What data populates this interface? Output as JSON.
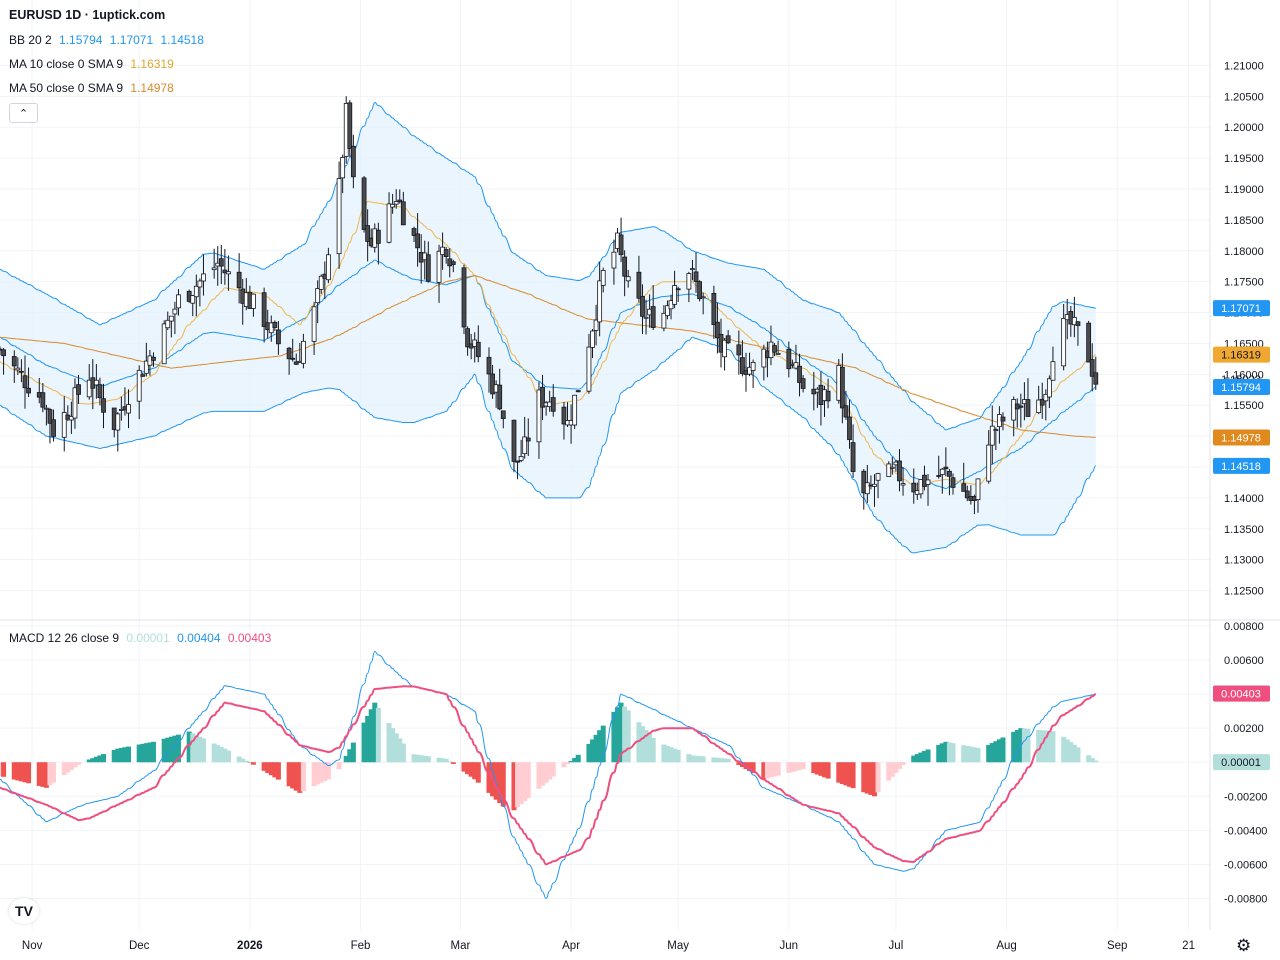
{
  "header": {
    "title": "EURUSD 1D · 1uptick.com"
  },
  "legend": {
    "bb": {
      "label": "BB 20 2",
      "values": [
        "1.15794",
        "1.17071",
        "1.14518"
      ]
    },
    "ma10": {
      "label": "MA 10 close 0 SMA 9",
      "value": "1.16319"
    },
    "ma50": {
      "label": "MA 50 close 0 SMA 9",
      "value": "1.14978"
    },
    "macd": {
      "label": "MACD 12 26 close 9",
      "values": [
        "0.00001",
        "0.00404",
        "0.00403"
      ]
    }
  },
  "colors": {
    "up_candle": "#ffffff",
    "down_candle": "#4a4a4a",
    "candle_outline": "#131722",
    "bb_line": "#2196f3",
    "bb_fill": "#e3f2fd",
    "ma10": "#f0b64a",
    "ma50": "#d98a2b",
    "macd_line": "#2196f3",
    "signal_line": "#ef4f7f",
    "hist_up_strong": "#26a69a",
    "hist_up_weak": "#b2dfdb",
    "hist_down_strong": "#ef5350",
    "hist_down_weak": "#ffcdd2"
  },
  "icons": {
    "collapse": "chevron-up-icon",
    "logo": "tradingview-logo",
    "settings": "gear-icon"
  },
  "chart_data": [
    {
      "type": "candlestick",
      "symbol": "EURUSD",
      "timeframe": "1D",
      "y_ticks": [
        "1.21000",
        "1.20500",
        "1.20000",
        "1.19500",
        "1.19000",
        "1.18500",
        "1.18000",
        "1.17500",
        "1.17000",
        "1.16500",
        "1.16000",
        "1.15500",
        "1.15000",
        "1.14500",
        "1.14000",
        "1.13500",
        "1.13000",
        "1.12500"
      ],
      "ylim": [
        1.1225,
        1.2125
      ],
      "x_ticks": [
        "Nov",
        "Dec",
        "2026",
        "Feb",
        "Mar",
        "Apr",
        "May",
        "Jun",
        "Jul",
        "Aug",
        "Sep",
        "21"
      ],
      "x_range": [
        "2025-10-23",
        "2026-09-27"
      ],
      "tick_dates": [
        "2025-11-01",
        "2025-12-01",
        "2026-01-01",
        "2026-02-01",
        "2026-03-01",
        "2026-04-01",
        "2026-05-01",
        "2026-06-01",
        "2026-07-01",
        "2026-08-01",
        "2026-09-01",
        "2026-09-21"
      ],
      "price_labels": {
        "last": "1.15923",
        "bb_basis": "1.15794",
        "bb_upper": "1.17071",
        "bb_lower": "1.14518",
        "ma10": "1.16319",
        "ma50": "1.14978"
      },
      "close_path": [
        [
          "2025-10-23",
          1.164
        ],
        [
          "2025-10-27",
          1.161
        ],
        [
          "2025-11-04",
          1.156
        ],
        [
          "2025-11-07",
          1.151
        ],
        [
          "2025-11-12",
          1.155
        ],
        [
          "2025-11-17",
          1.16
        ],
        [
          "2025-11-20",
          1.156
        ],
        [
          "2025-11-24",
          1.152
        ],
        [
          "2025-11-28",
          1.157
        ],
        [
          "2025-12-03",
          1.162
        ],
        [
          "2025-12-08",
          1.167
        ],
        [
          "2025-12-12",
          1.172
        ],
        [
          "2025-12-18",
          1.175
        ],
        [
          "2025-12-23",
          1.178
        ],
        [
          "2025-12-29",
          1.174
        ],
        [
          "2026-01-05",
          1.169
        ],
        [
          "2026-01-09",
          1.165
        ],
        [
          "2026-01-14",
          1.162
        ],
        [
          "2026-01-19",
          1.17
        ],
        [
          "2026-01-22",
          1.177
        ],
        [
          "2026-01-26",
          1.19
        ],
        [
          "2026-01-28",
          1.202
        ],
        [
          "2026-01-31",
          1.185
        ],
        [
          "2026-02-04",
          1.181
        ],
        [
          "2026-02-08",
          1.185
        ],
        [
          "2026-02-11",
          1.189
        ],
        [
          "2026-02-16",
          1.182
        ],
        [
          "2026-02-20",
          1.177
        ],
        [
          "2026-02-25",
          1.181
        ],
        [
          "2026-02-28",
          1.176
        ],
        [
          "2026-03-03",
          1.166
        ],
        [
          "2026-03-07",
          1.162
        ],
        [
          "2026-03-12",
          1.156
        ],
        [
          "2026-03-16",
          1.145
        ],
        [
          "2026-03-19",
          1.148
        ],
        [
          "2026-03-23",
          1.156
        ],
        [
          "2026-03-27",
          1.156
        ],
        [
          "2026-03-31",
          1.152
        ],
        [
          "2026-04-03",
          1.158
        ],
        [
          "2026-04-07",
          1.168
        ],
        [
          "2026-04-10",
          1.176
        ],
        [
          "2026-04-14",
          1.181
        ],
        [
          "2026-04-17",
          1.174
        ],
        [
          "2026-04-22",
          1.169
        ],
        [
          "2026-04-27",
          1.17
        ],
        [
          "2026-04-30",
          1.175
        ],
        [
          "2026-05-04",
          1.177
        ],
        [
          "2026-05-08",
          1.172
        ],
        [
          "2026-05-13",
          1.164
        ],
        [
          "2026-05-18",
          1.162
        ],
        [
          "2026-05-22",
          1.161
        ],
        [
          "2026-05-27",
          1.165
        ],
        [
          "2026-06-01",
          1.162
        ],
        [
          "2026-06-05",
          1.158
        ],
        [
          "2026-06-10",
          1.156
        ],
        [
          "2026-06-15",
          1.16
        ],
        [
          "2026-06-19",
          1.144
        ],
        [
          "2026-06-22",
          1.14
        ],
        [
          "2026-06-26",
          1.143
        ],
        [
          "2026-07-01",
          1.144
        ],
        [
          "2026-07-06",
          1.142
        ],
        [
          "2026-07-10",
          1.143
        ],
        [
          "2026-07-15",
          1.144
        ],
        [
          "2026-07-20",
          1.141
        ],
        [
          "2026-07-23",
          1.139
        ],
        [
          "2026-07-27",
          1.15
        ],
        [
          "2026-07-30",
          1.152
        ],
        [
          "2026-08-04",
          1.155
        ],
        [
          "2026-08-08",
          1.154
        ],
        [
          "2026-08-12",
          1.158
        ],
        [
          "2026-08-15",
          1.167
        ],
        [
          "2026-08-19",
          1.168
        ],
        [
          "2026-08-23",
          1.165
        ],
        [
          "2026-08-26",
          1.159
        ]
      ],
      "bb_upper_path": [
        [
          "2025-10-23",
          1.177
        ],
        [
          "2025-11-05",
          1.173
        ],
        [
          "2025-11-20",
          1.168
        ],
        [
          "2025-12-05",
          1.172
        ],
        [
          "2025-12-20",
          1.18
        ],
        [
          "2026-01-05",
          1.177
        ],
        [
          "2026-01-16",
          1.181
        ],
        [
          "2026-01-25",
          1.19
        ],
        [
          "2026-02-05",
          1.204
        ],
        [
          "2026-02-15",
          1.199
        ],
        [
          "2026-02-25",
          1.195
        ],
        [
          "2026-03-05",
          1.192
        ],
        [
          "2026-03-15",
          1.18
        ],
        [
          "2026-03-25",
          1.176
        ],
        [
          "2026-04-05",
          1.175
        ],
        [
          "2026-04-15",
          1.183
        ],
        [
          "2026-04-25",
          1.184
        ],
        [
          "2026-05-05",
          1.18
        ],
        [
          "2026-05-15",
          1.178
        ],
        [
          "2026-05-25",
          1.177
        ],
        [
          "2026-06-05",
          1.172
        ],
        [
          "2026-06-15",
          1.17
        ],
        [
          "2026-06-25",
          1.163
        ],
        [
          "2026-07-05",
          1.156
        ],
        [
          "2026-07-15",
          1.151
        ],
        [
          "2026-07-25",
          1.153
        ],
        [
          "2026-08-05",
          1.162
        ],
        [
          "2026-08-15",
          1.172
        ],
        [
          "2026-08-26",
          1.1707
        ]
      ],
      "bb_lower_path": [
        [
          "2025-10-23",
          1.155
        ],
        [
          "2025-11-05",
          1.15
        ],
        [
          "2025-11-20",
          1.148
        ],
        [
          "2025-12-05",
          1.15
        ],
        [
          "2025-12-20",
          1.154
        ],
        [
          "2026-01-05",
          1.154
        ],
        [
          "2026-01-16",
          1.157
        ],
        [
          "2026-01-25",
          1.158
        ],
        [
          "2026-02-05",
          1.153
        ],
        [
          "2026-02-15",
          1.152
        ],
        [
          "2026-02-25",
          1.154
        ],
        [
          "2026-03-05",
          1.16
        ],
        [
          "2026-03-15",
          1.145
        ],
        [
          "2026-03-25",
          1.14
        ],
        [
          "2026-04-05",
          1.14
        ],
        [
          "2026-04-15",
          1.157
        ],
        [
          "2026-04-25",
          1.161
        ],
        [
          "2026-05-05",
          1.166
        ],
        [
          "2026-05-15",
          1.164
        ],
        [
          "2026-05-25",
          1.158
        ],
        [
          "2026-06-05",
          1.153
        ],
        [
          "2026-06-15",
          1.147
        ],
        [
          "2026-06-25",
          1.137
        ],
        [
          "2026-07-05",
          1.131
        ],
        [
          "2026-07-15",
          1.132
        ],
        [
          "2026-07-25",
          1.136
        ],
        [
          "2026-08-05",
          1.134
        ],
        [
          "2026-08-15",
          1.134
        ],
        [
          "2026-08-26",
          1.1452
        ]
      ],
      "ma10_path": [
        [
          "2025-10-23",
          1.162
        ],
        [
          "2025-11-05",
          1.158
        ],
        [
          "2025-11-15",
          1.155
        ],
        [
          "2025-11-25",
          1.156
        ],
        [
          "2025-12-05",
          1.16
        ],
        [
          "2025-12-15",
          1.168
        ],
        [
          "2025-12-25",
          1.174
        ],
        [
          "2026-01-05",
          1.173
        ],
        [
          "2026-01-15",
          1.168
        ],
        [
          "2026-01-25",
          1.176
        ],
        [
          "2026-02-03",
          1.188
        ],
        [
          "2026-02-13",
          1.187
        ],
        [
          "2026-02-25",
          1.181
        ],
        [
          "2026-03-05",
          1.176
        ],
        [
          "2026-03-15",
          1.164
        ],
        [
          "2026-03-25",
          1.155
        ],
        [
          "2026-04-05",
          1.156
        ],
        [
          "2026-04-15",
          1.168
        ],
        [
          "2026-04-25",
          1.175
        ],
        [
          "2026-05-05",
          1.175
        ],
        [
          "2026-05-15",
          1.169
        ],
        [
          "2026-05-25",
          1.164
        ],
        [
          "2026-06-05",
          1.161
        ],
        [
          "2026-06-15",
          1.157
        ],
        [
          "2026-06-25",
          1.147
        ],
        [
          "2026-07-05",
          1.142
        ],
        [
          "2026-07-15",
          1.143
        ],
        [
          "2026-07-25",
          1.142
        ],
        [
          "2026-08-05",
          1.15
        ],
        [
          "2026-08-15",
          1.158
        ],
        [
          "2026-08-26",
          1.1632
        ]
      ],
      "ma50_path": [
        [
          "2025-10-23",
          1.166
        ],
        [
          "2025-11-10",
          1.165
        ],
        [
          "2025-11-25",
          1.163
        ],
        [
          "2025-12-10",
          1.161
        ],
        [
          "2025-12-25",
          1.162
        ],
        [
          "2026-01-10",
          1.163
        ],
        [
          "2026-01-25",
          1.166
        ],
        [
          "2026-02-10",
          1.171
        ],
        [
          "2026-02-25",
          1.175
        ],
        [
          "2026-03-05",
          1.176
        ],
        [
          "2026-03-20",
          1.173
        ],
        [
          "2026-04-05",
          1.169
        ],
        [
          "2026-04-20",
          1.168
        ],
        [
          "2026-05-05",
          1.167
        ],
        [
          "2026-05-20",
          1.165
        ],
        [
          "2026-06-05",
          1.163
        ],
        [
          "2026-06-20",
          1.161
        ],
        [
          "2026-07-05",
          1.157
        ],
        [
          "2026-07-20",
          1.154
        ],
        [
          "2026-08-05",
          1.151
        ],
        [
          "2026-08-20",
          1.15
        ],
        [
          "2026-08-26",
          1.1498
        ]
      ]
    },
    {
      "type": "macd",
      "y_ticks": [
        "0.00800",
        "0.00600",
        "0.00400",
        "0.00200",
        "0.00000",
        "-0.00200",
        "-0.00400",
        "-0.00600",
        "-0.00800"
      ],
      "ylim": [
        -0.0085,
        0.008
      ],
      "macd_path": [
        [
          "2025-10-23",
          -0.001
        ],
        [
          "2025-11-05",
          -0.0035
        ],
        [
          "2025-11-15",
          -0.0025
        ],
        [
          "2025-11-25",
          -0.002
        ],
        [
          "2025-12-05",
          -0.0005
        ],
        [
          "2025-12-15",
          0.002
        ],
        [
          "2025-12-25",
          0.0045
        ],
        [
          "2026-01-05",
          0.004
        ],
        [
          "2026-01-15",
          0.001
        ],
        [
          "2026-01-25",
          -0.0005
        ],
        [
          "2026-02-05",
          0.0065
        ],
        [
          "2026-02-15",
          0.0045
        ],
        [
          "2026-02-25",
          0.004
        ],
        [
          "2026-03-05",
          0.003
        ],
        [
          "2026-03-15",
          -0.004
        ],
        [
          "2026-03-25",
          -0.008
        ],
        [
          "2026-04-05",
          -0.003
        ],
        [
          "2026-04-15",
          0.004
        ],
        [
          "2026-04-25",
          0.003
        ],
        [
          "2026-05-05",
          0.002
        ],
        [
          "2026-05-15",
          0.001
        ],
        [
          "2026-05-25",
          -0.0015
        ],
        [
          "2026-06-05",
          -0.0025
        ],
        [
          "2026-06-15",
          -0.0035
        ],
        [
          "2026-06-25",
          -0.006
        ],
        [
          "2026-07-05",
          -0.0065
        ],
        [
          "2026-07-15",
          -0.004
        ],
        [
          "2026-07-25",
          -0.0035
        ],
        [
          "2026-08-05",
          0.001
        ],
        [
          "2026-08-15",
          0.0035
        ],
        [
          "2026-08-26",
          0.004
        ]
      ],
      "signal_path": [
        [
          "2025-10-23",
          -0.0015
        ],
        [
          "2025-11-05",
          -0.0025
        ],
        [
          "2025-11-15",
          -0.0035
        ],
        [
          "2025-11-25",
          -0.0025
        ],
        [
          "2025-12-05",
          -0.0015
        ],
        [
          "2025-12-15",
          0.001
        ],
        [
          "2025-12-25",
          0.0035
        ],
        [
          "2026-01-05",
          0.003
        ],
        [
          "2026-01-15",
          0.001
        ],
        [
          "2026-01-25",
          0.0005
        ],
        [
          "2026-02-05",
          0.0043
        ],
        [
          "2026-02-15",
          0.0045
        ],
        [
          "2026-02-25",
          0.004
        ],
        [
          "2026-03-05",
          0.001
        ],
        [
          "2026-03-15",
          -0.003
        ],
        [
          "2026-03-25",
          -0.006
        ],
        [
          "2026-04-05",
          -0.005
        ],
        [
          "2026-04-15",
          0.0005
        ],
        [
          "2026-04-25",
          0.002
        ],
        [
          "2026-05-05",
          0.002
        ],
        [
          "2026-05-15",
          0.0005
        ],
        [
          "2026-05-25",
          -0.001
        ],
        [
          "2026-06-05",
          -0.0025
        ],
        [
          "2026-06-15",
          -0.003
        ],
        [
          "2026-06-25",
          -0.005
        ],
        [
          "2026-07-05",
          -0.006
        ],
        [
          "2026-07-15",
          -0.0045
        ],
        [
          "2026-07-25",
          -0.004
        ],
        [
          "2026-08-05",
          -0.001
        ],
        [
          "2026-08-15",
          0.0025
        ],
        [
          "2026-08-26",
          0.004
        ]
      ],
      "histogram_path": [
        [
          "2025-10-23",
          -0.0008
        ],
        [
          "2025-11-05",
          -0.0015
        ],
        [
          "2025-11-15",
          0.0
        ],
        [
          "2025-11-25",
          0.0008
        ],
        [
          "2025-12-05",
          0.0012
        ],
        [
          "2025-12-15",
          0.0018
        ],
        [
          "2025-12-25",
          0.0008
        ],
        [
          "2026-01-05",
          -0.0005
        ],
        [
          "2026-01-15",
          -0.0018
        ],
        [
          "2026-01-25",
          -0.0008
        ],
        [
          "2026-02-05",
          0.0035
        ],
        [
          "2026-02-15",
          0.0005
        ],
        [
          "2026-02-25",
          0.0002
        ],
        [
          "2026-03-05",
          -0.001
        ],
        [
          "2026-03-15",
          -0.003
        ],
        [
          "2026-03-25",
          -0.0012
        ],
        [
          "2026-04-05",
          0.0008
        ],
        [
          "2026-04-15",
          0.0035
        ],
        [
          "2026-04-25",
          0.0012
        ],
        [
          "2026-05-05",
          0.0004
        ],
        [
          "2026-05-15",
          0.0002
        ],
        [
          "2026-05-25",
          -0.001
        ],
        [
          "2026-06-05",
          -0.0004
        ],
        [
          "2026-06-15",
          -0.0012
        ],
        [
          "2026-06-25",
          -0.002
        ],
        [
          "2026-07-05",
          0.0003
        ],
        [
          "2026-07-15",
          0.0012
        ],
        [
          "2026-07-25",
          0.0008
        ],
        [
          "2026-08-05",
          0.002
        ],
        [
          "2026-08-15",
          0.0018
        ],
        [
          "2026-08-26",
          0.0001
        ]
      ]
    }
  ]
}
